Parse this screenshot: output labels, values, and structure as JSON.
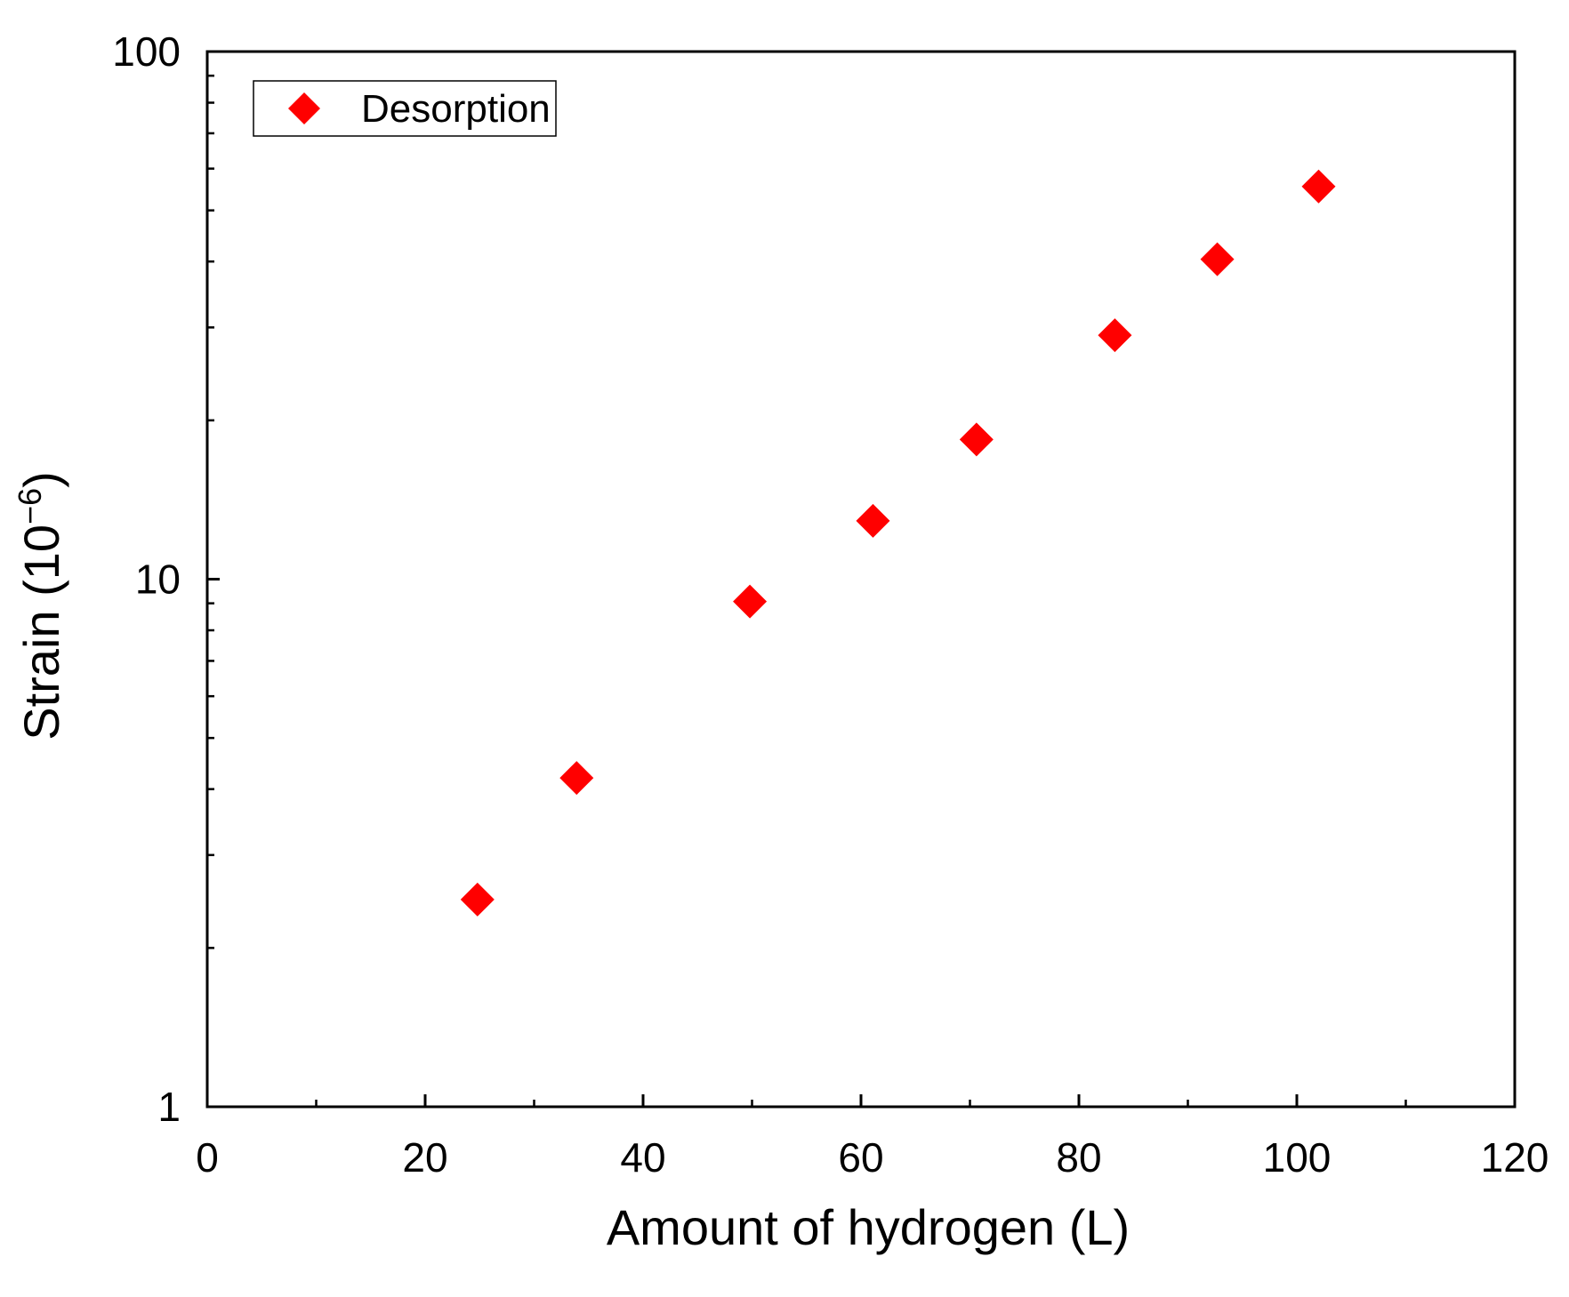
{
  "chart_data": {
    "type": "scatter",
    "xlabel": "Amount of hydrogen (L)",
    "ylabel": {
      "base": "Strain (10",
      "exponent": "−6",
      "close": ")"
    },
    "xlim": [
      0,
      120
    ],
    "ylim": [
      1,
      100
    ],
    "yscale": "log",
    "x_ticks": [
      0,
      20,
      40,
      60,
      80,
      100,
      120
    ],
    "x_tick_labels": [
      "0",
      "20",
      "40",
      "60",
      "80",
      "100",
      "120"
    ],
    "y_ticks": [
      1,
      10,
      100
    ],
    "y_tick_labels": [
      "1",
      "10",
      "100"
    ],
    "grid": false,
    "legend_position": "top-left",
    "series": [
      {
        "name": "Desorption",
        "marker": "diamond",
        "color": "#ff0000",
        "x": [
          24.8,
          33.9,
          49.8,
          61.1,
          70.6,
          83.3,
          92.7,
          102.0
        ],
        "y": [
          2.47,
          4.2,
          9.07,
          12.9,
          18.4,
          29.0,
          40.4,
          55.5
        ]
      }
    ]
  }
}
